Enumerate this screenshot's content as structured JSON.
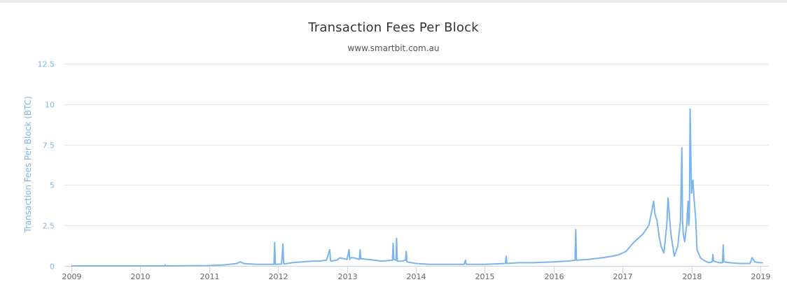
{
  "chart_data": {
    "type": "line",
    "title": "Transaction Fees Per Block",
    "subtitle": "www.smartbit.com.au",
    "xlabel": "",
    "ylabel": "Transaction Fees Per Block (BTC)",
    "xlim": [
      2009.0,
      2019.05
    ],
    "ylim": [
      0,
      12.5
    ],
    "yticks": [
      "0",
      "2.5",
      "5",
      "7.5",
      "10",
      "12.5"
    ],
    "ytick_values": [
      0,
      2.5,
      5,
      7.5,
      10,
      12.5
    ],
    "xticks": [
      "2009",
      "2010",
      "2011",
      "2012",
      "2013",
      "2014",
      "2015",
      "2016",
      "2017",
      "2018",
      "2019"
    ],
    "xtick_values": [
      2009,
      2010,
      2011,
      2012,
      2013,
      2014,
      2015,
      2016,
      2017,
      2018,
      2019
    ],
    "grid": true,
    "legend": "none",
    "series": [
      {
        "color": "#7cb5ec",
        "x": [
          2009.0,
          2010.0,
          2010.35,
          2010.36,
          2010.37,
          2011.0,
          2011.2,
          2011.4,
          2011.45,
          2011.5,
          2011.6,
          2011.7,
          2011.8,
          2011.94,
          2011.95,
          2011.96,
          2012.05,
          2012.07,
          2012.08,
          2012.09,
          2012.2,
          2012.35,
          2012.5,
          2012.6,
          2012.7,
          2012.75,
          2012.76,
          2012.77,
          2012.85,
          2012.9,
          2013.0,
          2013.03,
          2013.04,
          2013.05,
          2013.1,
          2013.18,
          2013.19,
          2013.2,
          2013.3,
          2013.4,
          2013.5,
          2013.66,
          2013.67,
          2013.68,
          2013.71,
          2013.72,
          2013.73,
          2013.8,
          2013.85,
          2013.86,
          2013.87,
          2014.0,
          2014.2,
          2014.5,
          2014.7,
          2014.72,
          2014.73,
          2015.0,
          2015.3,
          2015.31,
          2015.32,
          2015.5,
          2015.7,
          2016.0,
          2016.2,
          2016.31,
          2016.32,
          2016.33,
          2016.5,
          2016.7,
          2016.85,
          2016.95,
          2017.05,
          2017.15,
          2017.25,
          2017.3,
          2017.38,
          2017.42,
          2017.45,
          2017.47,
          2017.5,
          2017.53,
          2017.56,
          2017.6,
          2017.64,
          2017.66,
          2017.7,
          2017.75,
          2017.8,
          2017.84,
          2017.86,
          2017.87,
          2017.88,
          2017.9,
          2017.93,
          2017.95,
          2017.96,
          2017.97,
          2017.98,
          2018.0,
          2018.02,
          2018.04,
          2018.06,
          2018.08,
          2018.1,
          2018.13,
          2018.16,
          2018.2,
          2018.25,
          2018.3,
          2018.31,
          2018.32,
          2018.4,
          2018.45,
          2018.46,
          2018.47,
          2018.55,
          2018.7,
          2018.85,
          2018.88,
          2018.92,
          2018.98,
          2019.03
        ],
        "y": [
          0.0,
          0.0,
          0.0,
          0.08,
          0.0,
          0.02,
          0.05,
          0.15,
          0.25,
          0.15,
          0.12,
          0.1,
          0.1,
          0.1,
          1.45,
          0.1,
          0.12,
          1.35,
          0.15,
          0.12,
          0.2,
          0.25,
          0.3,
          0.3,
          0.35,
          1.0,
          0.35,
          0.3,
          0.35,
          0.5,
          0.4,
          1.0,
          0.4,
          0.5,
          0.5,
          0.4,
          1.0,
          0.45,
          0.4,
          0.35,
          0.3,
          0.35,
          1.4,
          0.4,
          0.35,
          1.7,
          0.3,
          0.3,
          0.35,
          0.9,
          0.25,
          0.15,
          0.1,
          0.1,
          0.1,
          0.35,
          0.1,
          0.1,
          0.15,
          0.6,
          0.15,
          0.2,
          0.2,
          0.25,
          0.3,
          0.35,
          2.25,
          0.35,
          0.4,
          0.5,
          0.6,
          0.7,
          0.9,
          1.4,
          1.8,
          2.0,
          2.5,
          3.3,
          4.0,
          3.2,
          2.8,
          1.8,
          1.2,
          0.8,
          2.5,
          4.2,
          2.0,
          0.6,
          1.2,
          2.8,
          7.3,
          2.8,
          2.0,
          1.5,
          2.5,
          4.0,
          2.5,
          3.0,
          9.7,
          4.5,
          5.3,
          4.0,
          3.0,
          1.0,
          0.8,
          0.5,
          0.4,
          0.3,
          0.2,
          0.25,
          0.7,
          0.3,
          0.2,
          0.2,
          1.3,
          0.25,
          0.2,
          0.15,
          0.15,
          0.5,
          0.25,
          0.2,
          0.2
        ]
      }
    ]
  }
}
